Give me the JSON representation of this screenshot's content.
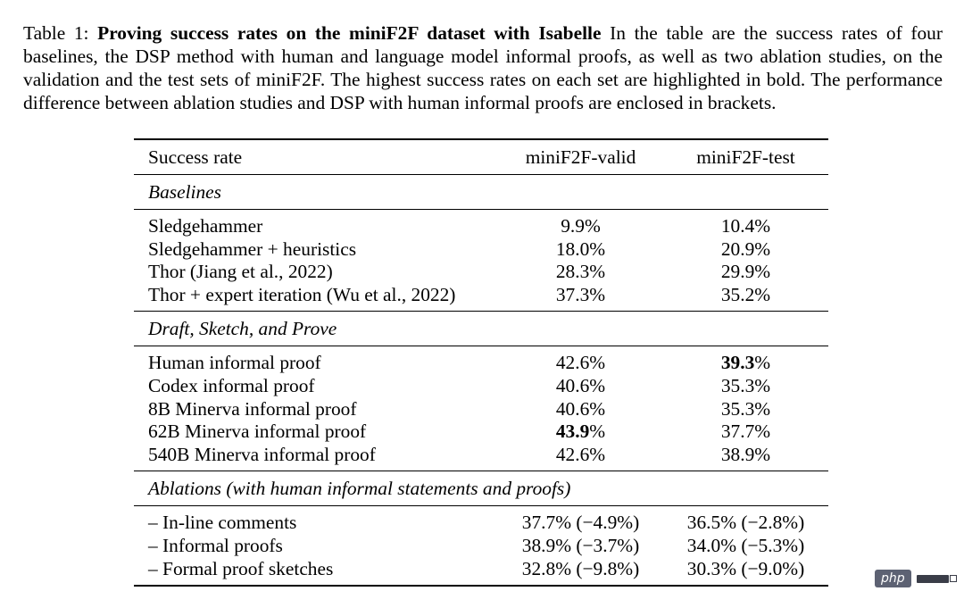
{
  "caption": {
    "label": "Table 1: ",
    "title": "Proving success rates on the miniF2F dataset with Isabelle",
    "text": " In the table are the success rates of four baselines, the DSP method with human and language model informal proofs, as well as two ablation studies, on the validation and the test sets of miniF2F. The highest success rates on each set are highlighted in bold. The performance difference between ablation studies and DSP with human informal proofs are enclosed in brackets."
  },
  "table": {
    "headers": [
      "Success rate",
      "miniF2F-valid",
      "miniF2F-test"
    ],
    "sections": [
      {
        "title": "Baselines",
        "rows": [
          {
            "method": "Sledgehammer",
            "valid": "9.9%",
            "test": "10.4%"
          },
          {
            "method": "Sledgehammer + heuristics",
            "valid": "18.0%",
            "test": "20.9%"
          },
          {
            "method": "Thor (Jiang et al., 2022)",
            "valid": "28.3%",
            "test": "29.9%"
          },
          {
            "method": "Thor + expert iteration (Wu et al., 2022)",
            "valid": "37.3%",
            "test": "35.2%"
          }
        ]
      },
      {
        "title": "Draft, Sketch, and Prove",
        "rows": [
          {
            "method": "Human informal proof",
            "valid": "42.6%",
            "test_bold": "39.3",
            "test_suffix": "%"
          },
          {
            "method": "Codex informal proof",
            "valid": "40.6%",
            "test": "35.3%"
          },
          {
            "method": "8B Minerva informal proof",
            "valid": "40.6%",
            "test": "35.3%"
          },
          {
            "method": "62B Minerva informal proof",
            "valid_bold": "43.9",
            "valid_suffix": "%",
            "test": "37.7%"
          },
          {
            "method": "540B Minerva informal proof",
            "valid": "42.6%",
            "test": "38.9%"
          }
        ]
      },
      {
        "title": "Ablations (with human informal statements and proofs)",
        "rows": [
          {
            "method": "– In-line comments",
            "valid": "37.7% (−4.9%)",
            "test": "36.5% (−2.8%)"
          },
          {
            "method": "– Informal proofs",
            "valid": "38.9% (−3.7%)",
            "test": "34.0% (−5.3%)"
          },
          {
            "method": "– Formal proof sketches",
            "valid": "32.8% (−9.8%)",
            "test": "30.3% (−9.0%)"
          }
        ]
      }
    ]
  },
  "watermark": {
    "logo_text": "php"
  }
}
